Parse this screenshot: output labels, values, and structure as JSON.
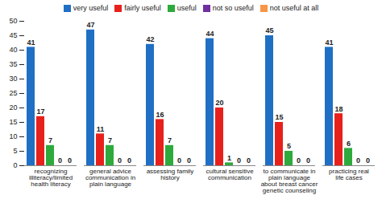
{
  "chart_data": {
    "type": "bar",
    "categories": [
      "recognizing illiteracy/limited health literacy",
      "general advice communication in plain language",
      "assessing family history",
      "cultural sensitive communication",
      "to communicate in plain language about breast cancer genetic counseling",
      "practicing real life cases"
    ],
    "series": [
      {
        "name": "very useful",
        "color": "#1f6fc5",
        "values": [
          41,
          47,
          42,
          44,
          45,
          41
        ]
      },
      {
        "name": "fairly useful",
        "color": "#e8201c",
        "values": [
          17,
          11,
          16,
          20,
          15,
          18
        ]
      },
      {
        "name": "useful",
        "color": "#2eaa3d",
        "values": [
          7,
          7,
          7,
          1,
          5,
          6
        ]
      },
      {
        "name": "not so useful",
        "color": "#7030a0",
        "values": [
          0,
          0,
          0,
          0,
          0,
          0
        ]
      },
      {
        "name": "not useful at all",
        "color": "#f79646",
        "values": [
          0,
          0,
          0,
          0,
          0,
          0
        ]
      }
    ],
    "ylim": [
      0,
      50
    ],
    "yticks": [
      0,
      5,
      10,
      15,
      20,
      25,
      30,
      35,
      40,
      45,
      50
    ],
    "grid": false,
    "legend": "top",
    "data_labels": true
  }
}
